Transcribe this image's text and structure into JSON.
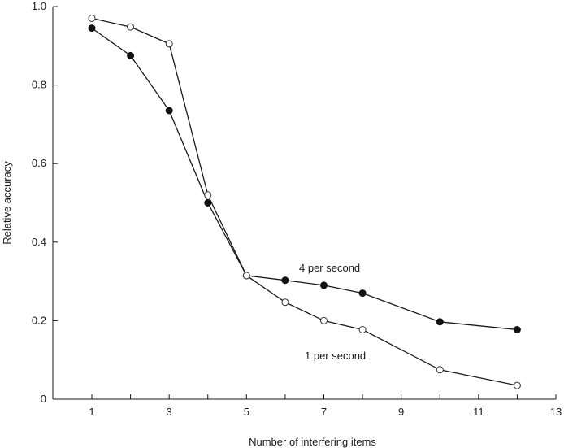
{
  "chart_data": {
    "type": "line",
    "title": "",
    "xlabel": "Number of interfering items",
    "ylabel": "Relative accuracy",
    "xlim": [
      0,
      13
    ],
    "ylim": [
      0,
      1.0
    ],
    "x_ticks": [
      1,
      3,
      5,
      7,
      9,
      11,
      13
    ],
    "x_minor_ticks": [
      2,
      4,
      6,
      8,
      10,
      12
    ],
    "y_ticks": [
      0,
      0.2,
      0.4,
      0.6,
      0.8,
      1.0
    ],
    "y_tick_labels": [
      "0",
      "0.2",
      "0.4",
      "0.6",
      "0.8",
      "1.0"
    ],
    "grid": false,
    "legend": "none",
    "series": [
      {
        "name": "4 per second",
        "marker": "filled-circle",
        "color": "#111111",
        "x": [
          1,
          2,
          3,
          4,
          5,
          6,
          7,
          8,
          10,
          12
        ],
        "values": [
          0.945,
          0.875,
          0.735,
          0.5,
          0.315,
          0.303,
          0.29,
          0.27,
          0.197,
          0.177
        ]
      },
      {
        "name": "1 per second",
        "marker": "open-circle",
        "color": "#333333",
        "x": [
          1,
          2,
          3,
          4,
          5,
          6,
          7,
          8,
          10,
          12
        ],
        "values": [
          0.97,
          0.948,
          0.905,
          0.52,
          0.315,
          0.247,
          0.2,
          0.177,
          0.075,
          0.035
        ]
      }
    ]
  }
}
